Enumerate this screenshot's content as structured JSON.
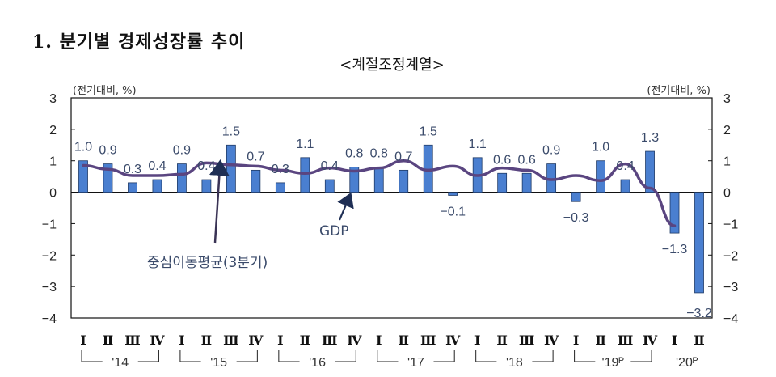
{
  "header": {
    "title": "1. 분기별 경제성장률 추이",
    "subtitle": "<계절조정계열>"
  },
  "axes": {
    "left_unit": "(전기대비, %)",
    "right_unit": "(전기대비, %)",
    "y_ticks": [
      "3",
      "2",
      "1",
      "0",
      "−1",
      "−2",
      "−3",
      "−4"
    ]
  },
  "annotations": {
    "gdp": "GDP",
    "moving_average": "중심이동평균(3분기)"
  },
  "colors": {
    "bar": "#4a7fd0",
    "bar_border": "#1f3a66",
    "line": "#5a4580",
    "arrow": "#1f2f55"
  },
  "chart_data": {
    "type": "bar",
    "title": "1. 분기별 경제성장률 추이",
    "subtitle": "<계절조정계열>",
    "xlabel": "",
    "ylabel": "(전기대비, %)",
    "ylim": [
      -4,
      3
    ],
    "grid": false,
    "categories": [
      "'14 I",
      "'14 II",
      "'14 III",
      "'14 IV",
      "'15 I",
      "'15 II",
      "'15 III",
      "'15 IV",
      "'16 I",
      "'16 II",
      "'16 III",
      "'16 IV",
      "'17 I",
      "'17 II",
      "'17 III",
      "'17 IV",
      "'18 I",
      "'18 II",
      "'18 III",
      "'18 IV",
      "'19P I",
      "'19P II",
      "'19P III",
      "'19P IV",
      "'20P I",
      "'20P II"
    ],
    "quarter_labels": [
      "Ⅰ",
      "Ⅱ",
      "Ⅲ",
      "Ⅳ",
      "Ⅰ",
      "Ⅱ",
      "Ⅲ",
      "Ⅳ",
      "Ⅰ",
      "Ⅱ",
      "Ⅲ",
      "Ⅳ",
      "Ⅰ",
      "Ⅱ",
      "Ⅲ",
      "Ⅳ",
      "Ⅰ",
      "Ⅱ",
      "Ⅲ",
      "Ⅳ",
      "Ⅰ",
      "Ⅱ",
      "Ⅲ",
      "Ⅳ",
      "Ⅰ",
      "Ⅱ"
    ],
    "year_labels": [
      "'14",
      "'15",
      "'16",
      "'17",
      "'18",
      "'19ᴾ",
      "'20ᴾ"
    ],
    "series": [
      {
        "name": "GDP",
        "type": "bar",
        "values": [
          1.0,
          0.9,
          0.3,
          0.4,
          0.9,
          0.4,
          1.5,
          0.7,
          0.3,
          1.1,
          0.4,
          0.8,
          0.8,
          0.7,
          1.5,
          -0.1,
          1.1,
          0.6,
          0.6,
          0.9,
          -0.3,
          1.0,
          0.4,
          1.3,
          -1.3,
          -3.2
        ],
        "labels": [
          "1.0",
          "0.9",
          "0.3",
          "0.4",
          "0.9",
          "0.4",
          "1.5",
          "0.7",
          "0.3",
          "1.1",
          "0.4",
          "0.8",
          "0.8",
          "0.7",
          "1.5",
          "−0.1",
          "1.1",
          "0.6",
          "0.6",
          "0.9",
          "−0.3",
          "1.0",
          "0.4",
          "1.3",
          "−1.3",
          "−3.2"
        ]
      },
      {
        "name": "중심이동평균(3분기)",
        "type": "line",
        "values": [
          0.85,
          0.73,
          0.53,
          0.53,
          0.57,
          0.93,
          0.87,
          0.83,
          0.7,
          0.6,
          0.77,
          0.67,
          0.77,
          1.0,
          0.7,
          0.83,
          0.53,
          0.77,
          0.7,
          0.4,
          0.53,
          0.37,
          0.9,
          0.13,
          -1.07
        ]
      }
    ]
  }
}
